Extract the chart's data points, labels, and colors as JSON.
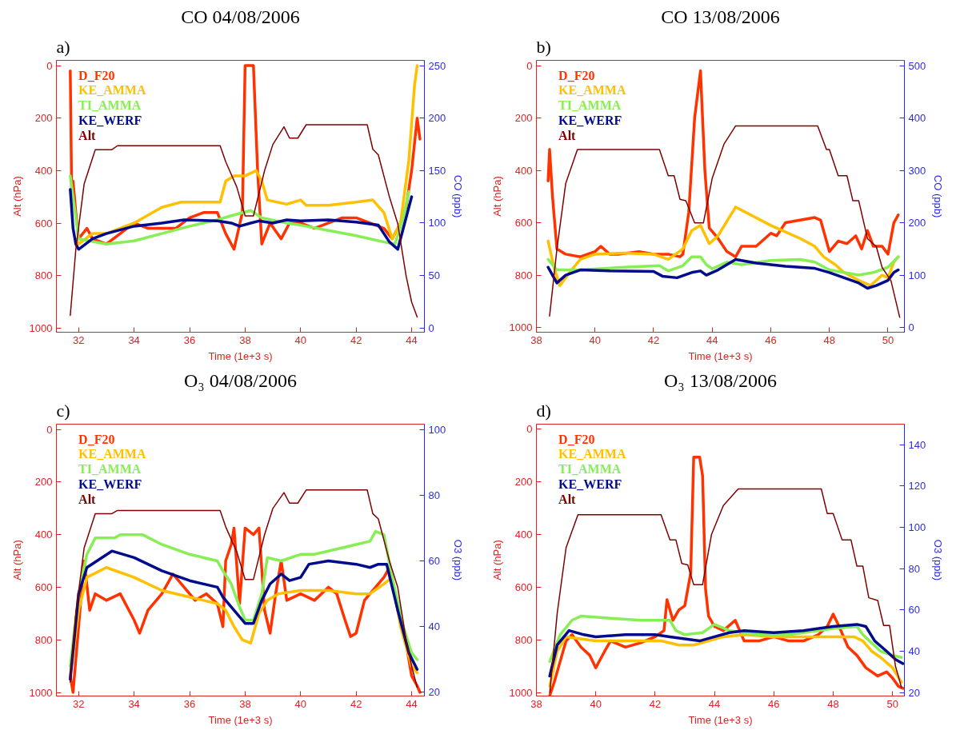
{
  "chart_data": [
    {
      "type": "line",
      "title": "CO 04/08/2006",
      "annotations": [
        "a)"
      ],
      "xlabel": "Time (1e+3 s)",
      "ylabel": "Alt (hPa)",
      "y2label": "CO (ppb)",
      "xlim": [
        31.2,
        44.46
      ],
      "xticks": [
        32,
        34,
        36,
        38,
        40,
        42,
        44
      ],
      "ylim": [
        1015,
        -20
      ],
      "yticks": [
        0,
        200,
        400,
        600,
        800,
        1000
      ],
      "y2lim": [
        -4,
        255
      ],
      "y2ticks": [
        0,
        50,
        100,
        150,
        200,
        250
      ],
      "legend": "top left",
      "grid": false,
      "series": [
        {
          "name": "D_F20",
          "color": "#ff3300",
          "axis": "y2",
          "x": [
            31.7,
            31.75,
            31.8,
            31.9,
            32.0,
            32.3,
            32.5,
            33.0,
            33.5,
            34.0,
            34.5,
            35.0,
            35.5,
            36.0,
            36.5,
            37.0,
            37.3,
            37.6,
            37.9,
            38.0,
            38.3,
            38.45,
            38.6,
            38.9,
            39.3,
            39.6,
            40.0,
            40.5,
            41.0,
            41.5,
            42.0,
            42.5,
            43.0,
            43.3,
            43.6,
            43.8,
            44.0,
            44.2,
            44.3
          ],
          "values": [
            245,
            130,
            140,
            110,
            85,
            95,
            85,
            80,
            90,
            100,
            95,
            95,
            95,
            105,
            110,
            110,
            90,
            75,
            110,
            250,
            250,
            150,
            80,
            100,
            85,
            100,
            100,
            95,
            100,
            105,
            105,
            100,
            95,
            85,
            100,
            115,
            150,
            200,
            180
          ]
        },
        {
          "name": "KE_AMMA",
          "color": "#ffc000",
          "axis": "y2",
          "x": [
            31.9,
            32.0,
            32.5,
            33.0,
            34.0,
            35.0,
            35.7,
            37.1,
            37.3,
            37.6,
            38.0,
            38.4,
            38.6,
            38.8,
            39.5,
            40.0,
            40.2,
            41.0,
            42.0,
            42.6,
            43.0,
            43.3,
            43.6,
            43.9,
            44.1,
            44.2
          ],
          "values": [
            85,
            80,
            90,
            90,
            100,
            115,
            120,
            120,
            140,
            145,
            145,
            150,
            140,
            122,
            118,
            122,
            117,
            117,
            120,
            122,
            110,
            85,
            100,
            160,
            230,
            250
          ]
        },
        {
          "name": "TI_AMMA",
          "color": "#88ee55",
          "axis": "y2",
          "x": [
            31.7,
            31.8,
            32.0,
            33.0,
            34.0,
            35.0,
            36.0,
            37.0,
            37.5,
            38.2,
            38.6,
            39.5,
            40.0,
            41.0,
            42.0,
            43.0,
            43.4,
            43.7,
            43.9
          ],
          "values": [
            145,
            125,
            85,
            80,
            83,
            90,
            97,
            103,
            107,
            112,
            105,
            100,
            98,
            93,
            88,
            82,
            80,
            105,
            130
          ]
        },
        {
          "name": "KE_WERF",
          "color": "#000c8c",
          "axis": "y2",
          "x": [
            31.7,
            31.8,
            31.9,
            32.0,
            32.5,
            33.0,
            34.0,
            35.0,
            35.8,
            37.0,
            37.5,
            37.8,
            38.2,
            38.5,
            39.0,
            39.5,
            40.0,
            41.0,
            42.0,
            42.8,
            43.2,
            43.5,
            43.7,
            43.9,
            44.0
          ],
          "values": [
            132,
            95,
            80,
            75,
            85,
            90,
            97,
            100,
            103,
            102,
            100,
            97,
            100,
            102,
            100,
            103,
            102,
            103,
            101,
            98,
            82,
            75,
            95,
            115,
            125
          ]
        },
        {
          "name": "Alt",
          "color": "#800000",
          "x": [
            31.7,
            31.9,
            32.2,
            32.6,
            33.2,
            33.4,
            37.1,
            37.3,
            37.7,
            38.0,
            38.3,
            38.7,
            39.0,
            39.4,
            39.6,
            39.9,
            40.2,
            42.4,
            42.6,
            42.8,
            43.2,
            43.5,
            43.8,
            44.0,
            44.2
          ],
          "values": [
            951,
            700,
            450,
            320,
            320,
            305,
            305,
            366,
            462,
            572,
            572,
            400,
            300,
            233,
            276,
            276,
            225,
            225,
            318,
            340,
            500,
            602,
            800,
            900,
            957
          ]
        }
      ]
    },
    {
      "type": "line",
      "title": "CO 13/08/2006",
      "annotations": [
        "b)"
      ],
      "xlabel": "Time (1e+3 s)",
      "ylabel": "Alt (hPa)",
      "y2label": "CO (ppb)",
      "xlim": [
        38.0,
        50.56
      ],
      "xticks": [
        38,
        40,
        42,
        44,
        46,
        48,
        50
      ],
      "ylim": [
        1017,
        -20
      ],
      "yticks": [
        0,
        200,
        400,
        600,
        800,
        1000
      ],
      "y2lim": [
        -9,
        510
      ],
      "y2ticks": [
        0,
        100,
        200,
        300,
        400,
        500
      ],
      "legend": "top left",
      "grid": false,
      "series": [
        {
          "name": "D_F20",
          "color": "#ff3300",
          "axis": "y2",
          "x": [
            38.4,
            38.45,
            38.55,
            38.7,
            39.0,
            39.5,
            40.0,
            40.2,
            40.5,
            40.8,
            41.5,
            42.0,
            42.5,
            42.9,
            43.0,
            43.2,
            43.4,
            43.6,
            43.75,
            43.9,
            44.2,
            44.5,
            44.8,
            45.0,
            45.5,
            46.0,
            46.2,
            46.5,
            47.0,
            47.5,
            47.7,
            48.0,
            48.3,
            48.6,
            48.9,
            49.1,
            49.3,
            49.5,
            49.8,
            50.0,
            50.2,
            50.35
          ],
          "values": [
            280,
            340,
            250,
            150,
            140,
            135,
            145,
            155,
            140,
            140,
            145,
            140,
            140,
            135,
            140,
            220,
            400,
            490,
            300,
            190,
            170,
            145,
            135,
            155,
            155,
            180,
            175,
            200,
            205,
            210,
            205,
            145,
            165,
            160,
            175,
            150,
            185,
            155,
            155,
            140,
            200,
            215
          ]
        },
        {
          "name": "KE_AMMA",
          "color": "#ffc000",
          "axis": "y2",
          "x": [
            38.4,
            38.6,
            38.8,
            39.2,
            39.5,
            40.0,
            41.0,
            42.0,
            42.5,
            43.0,
            43.3,
            43.6,
            43.9,
            44.2,
            44.8,
            46.0,
            47.0,
            47.5,
            47.8,
            48.2,
            48.5,
            49.0,
            49.4,
            49.8,
            50.0,
            50.2,
            50.35
          ],
          "values": [
            165,
            115,
            80,
            110,
            130,
            140,
            142,
            140,
            130,
            150,
            185,
            195,
            160,
            175,
            230,
            195,
            170,
            155,
            135,
            120,
            105,
            90,
            80,
            100,
            95,
            125,
            135
          ]
        },
        {
          "name": "TI_AMMA",
          "color": "#88ee55",
          "axis": "y2",
          "x": [
            38.4,
            38.7,
            39.5,
            41.0,
            42.2,
            42.5,
            43.0,
            43.3,
            43.6,
            43.8,
            44.0,
            44.5,
            45.0,
            46.0,
            47.0,
            47.5,
            48.0,
            49.0,
            49.5,
            50.0,
            50.35
          ],
          "values": [
            130,
            110,
            110,
            115,
            118,
            108,
            118,
            135,
            135,
            120,
            112,
            125,
            120,
            128,
            130,
            125,
            110,
            100,
            105,
            115,
            135
          ]
        },
        {
          "name": "KE_WERF",
          "color": "#000c8c",
          "axis": "y2",
          "x": [
            38.4,
            38.55,
            38.7,
            39.0,
            39.5,
            40.5,
            42.0,
            42.3,
            42.8,
            43.3,
            43.6,
            43.8,
            44.2,
            44.8,
            45.5,
            46.5,
            47.5,
            48.0,
            48.5,
            49.0,
            49.3,
            49.6,
            50.0,
            50.2,
            50.35
          ],
          "values": [
            115,
            100,
            85,
            100,
            110,
            108,
            107,
            98,
            95,
            105,
            108,
            100,
            110,
            130,
            123,
            117,
            113,
            105,
            95,
            85,
            75,
            80,
            90,
            105,
            110
          ]
        },
        {
          "name": "Alt",
          "color": "#800000",
          "x": [
            38.45,
            38.7,
            39.0,
            39.4,
            42.2,
            42.5,
            42.7,
            42.9,
            43.1,
            43.4,
            43.7,
            44.0,
            44.4,
            44.8,
            47.6,
            47.9,
            48.0,
            48.3,
            48.6,
            48.8,
            49.0,
            49.3,
            49.6,
            49.8,
            50.1,
            50.4
          ],
          "values": [
            955,
            700,
            450,
            320,
            320,
            420,
            420,
            510,
            515,
            600,
            600,
            430,
            300,
            230,
            230,
            320,
            320,
            420,
            420,
            515,
            515,
            660,
            690,
            770,
            820,
            960
          ]
        }
      ]
    },
    {
      "type": "line",
      "title": "O₃ 04/08/2006",
      "annotations": [
        "c)"
      ],
      "xlabel": "Time (1e+3 s)",
      "ylabel": "Alt (hPa)",
      "y2label": "O3 (ppb)",
      "xlim": [
        31.2,
        44.46
      ],
      "xticks": [
        32,
        34,
        36,
        38,
        40,
        42,
        44
      ],
      "ylim": [
        1013,
        -20
      ],
      "yticks": [
        0,
        200,
        400,
        600,
        800,
        1000
      ],
      "y2lim": [
        18.9,
        101.6
      ],
      "y2ticks": [
        20,
        40,
        60,
        80,
        100
      ],
      "legend": "top left",
      "grid": false,
      "series": [
        {
          "name": "D_F20",
          "color": "#ff3300",
          "axis": "y2",
          "x": [
            31.7,
            31.8,
            32.0,
            32.2,
            32.4,
            32.6,
            33.0,
            33.5,
            34.0,
            34.2,
            34.5,
            35.0,
            35.4,
            35.8,
            36.2,
            36.6,
            37.0,
            37.2,
            37.3,
            37.5,
            37.6,
            37.8,
            38.0,
            38.3,
            38.5,
            38.7,
            38.9,
            39.1,
            39.3,
            39.5,
            40.0,
            40.5,
            41.0,
            41.3,
            41.6,
            41.8,
            42.0,
            42.3,
            42.7,
            43.0,
            43.2,
            43.5,
            43.8,
            44.0,
            44.2,
            44.3
          ],
          "values": [
            25,
            20,
            40,
            60,
            45,
            50,
            48,
            50,
            42,
            38,
            45,
            50,
            56,
            52,
            48,
            50,
            47,
            40,
            60,
            65,
            70,
            47,
            70,
            68,
            70,
            45,
            38,
            50,
            60,
            48,
            50,
            48,
            52,
            50,
            42,
            37,
            38,
            48,
            52,
            55,
            58,
            45,
            35,
            25,
            22,
            20
          ]
        },
        {
          "name": "KE_AMMA",
          "color": "#ffc000",
          "axis": "y2",
          "x": [
            31.7,
            32.0,
            32.3,
            33.0,
            34.0,
            35.0,
            36.0,
            37.0,
            37.3,
            37.6,
            37.9,
            38.2,
            38.5,
            38.8,
            39.2,
            40.0,
            41.0,
            42.0,
            42.5,
            43.0,
            43.3,
            43.6,
            44.0,
            44.2
          ],
          "values": [
            25,
            45,
            55,
            58,
            55,
            51,
            49,
            47,
            45,
            40,
            36,
            35,
            44,
            48,
            50,
            51,
            51,
            50,
            50,
            53,
            55,
            40,
            28,
            26
          ]
        },
        {
          "name": "TI_AMMA",
          "color": "#88ee55",
          "axis": "y2",
          "x": [
            31.7,
            32.0,
            32.3,
            32.6,
            33.3,
            33.5,
            34.3,
            35.0,
            36.0,
            37.0,
            37.2,
            37.5,
            37.8,
            38.0,
            38.3,
            38.6,
            38.8,
            39.3,
            40.0,
            40.5,
            41.0,
            42.0,
            42.5,
            42.7,
            43.0,
            43.3,
            43.7,
            44.0,
            44.2
          ],
          "values": [
            28,
            50,
            62,
            67,
            67,
            68,
            68,
            65,
            62,
            60,
            57,
            53,
            46,
            42,
            42,
            50,
            61,
            60,
            62,
            62,
            63,
            65,
            66,
            69,
            68,
            55,
            40,
            32,
            30
          ]
        },
        {
          "name": "KE_WERF",
          "color": "#000c8c",
          "axis": "y2",
          "x": [
            31.7,
            32.0,
            32.3,
            33.2,
            34.0,
            35.0,
            36.0,
            37.0,
            37.2,
            37.5,
            37.8,
            38.0,
            38.3,
            38.6,
            38.9,
            39.3,
            39.6,
            40.0,
            40.3,
            41.0,
            42.0,
            42.5,
            42.8,
            43.1,
            43.5,
            43.9,
            44.2
          ],
          "values": [
            24,
            50,
            58,
            63,
            61,
            57,
            54,
            52,
            49,
            46,
            43,
            41,
            41,
            48,
            53,
            56,
            54,
            55,
            59,
            60,
            59,
            58,
            59,
            59,
            45,
            32,
            27
          ]
        },
        {
          "name": "Alt",
          "color": "#800000",
          "x": [
            31.7,
            31.9,
            32.2,
            32.6,
            33.2,
            33.4,
            37.1,
            37.3,
            37.7,
            38.0,
            38.3,
            38.7,
            39.0,
            39.4,
            39.6,
            39.9,
            40.2,
            42.4,
            42.6,
            42.8,
            43.2,
            43.5,
            43.8,
            44.0,
            44.2
          ],
          "values": [
            960,
            700,
            450,
            320,
            320,
            308,
            308,
            370,
            465,
            570,
            570,
            400,
            300,
            240,
            280,
            280,
            230,
            230,
            320,
            340,
            500,
            600,
            800,
            900,
            980
          ]
        }
      ]
    },
    {
      "type": "line",
      "title": "O₃ 13/08/2006",
      "annotations": [
        "d)"
      ],
      "xlabel": "Time (1e+3 s)",
      "ylabel": "Alt (hPa)",
      "y2label": "O3 (ppb)",
      "xlim": [
        38.0,
        50.4
      ],
      "xticks": [
        38,
        40,
        42,
        44,
        46,
        48,
        50
      ],
      "ylim": [
        1013,
        -19
      ],
      "yticks": [
        0,
        200,
        400,
        600,
        800,
        1000
      ],
      "y2lim": [
        18.3,
        150
      ],
      "y2ticks": [
        20,
        40,
        60,
        80,
        100,
        120,
        140
      ],
      "legend": "top left",
      "grid": false,
      "series": [
        {
          "name": "D_F20",
          "color": "#ff3300",
          "axis": "y2",
          "x": [
            38.45,
            38.6,
            38.8,
            39.0,
            39.2,
            39.5,
            39.8,
            40.0,
            40.3,
            40.5,
            41.0,
            41.5,
            42.0,
            42.3,
            42.4,
            42.6,
            42.8,
            43.0,
            43.1,
            43.2,
            43.3,
            43.5,
            43.6,
            43.7,
            43.8,
            44.0,
            44.3,
            44.7,
            45.0,
            45.5,
            46.0,
            46.5,
            47.0,
            47.5,
            47.8,
            48.0,
            48.2,
            48.5,
            48.8,
            49.1,
            49.5,
            49.8,
            50.0,
            50.2,
            50.35
          ],
          "values": [
            18.5,
            25,
            35,
            45,
            48,
            42,
            38,
            32,
            40,
            45,
            42,
            44,
            47,
            50,
            65,
            55,
            60,
            62,
            70,
            78,
            134,
            134,
            125,
            70,
            57,
            52,
            50,
            55,
            45,
            45,
            47,
            45,
            45,
            48,
            52,
            58,
            52,
            42,
            38,
            32,
            28,
            30,
            27,
            23,
            22
          ]
        },
        {
          "name": "KE_AMMA",
          "color": "#ffc000",
          "axis": "y2",
          "x": [
            38.45,
            38.7,
            39.0,
            39.5,
            40.0,
            40.5,
            41.5,
            42.2,
            42.8,
            43.3,
            43.8,
            44.3,
            45.0,
            46.0,
            47.0,
            48.0,
            48.7,
            49.0,
            49.3,
            49.6,
            50.0,
            50.3
          ],
          "values": [
            23,
            40,
            47,
            46,
            45,
            45,
            45,
            45,
            43,
            43,
            45,
            47,
            48,
            47,
            47,
            47,
            47,
            45,
            40,
            37,
            32,
            25
          ]
        },
        {
          "name": "TI_AMMA",
          "color": "#88ee55",
          "axis": "y2",
          "x": [
            38.45,
            38.8,
            39.2,
            39.5,
            40.5,
            41.5,
            42.5,
            42.7,
            43.0,
            43.6,
            44.0,
            44.5,
            45.5,
            46.5,
            47.0,
            48.0,
            48.8,
            49.0,
            49.3,
            49.6,
            50.0,
            50.3
          ],
          "values": [
            35,
            48,
            55,
            57,
            56,
            55,
            55,
            50,
            48,
            49,
            53,
            50,
            48,
            48,
            49,
            51,
            52,
            48,
            44,
            40,
            38,
            37
          ]
        },
        {
          "name": "KE_WERF",
          "color": "#000c8c",
          "axis": "y2",
          "x": [
            38.45,
            38.7,
            39.1,
            39.6,
            40.0,
            41.0,
            42.0,
            42.5,
            43.0,
            43.5,
            44.0,
            44.5,
            45.0,
            46.0,
            47.0,
            48.0,
            48.8,
            49.1,
            49.4,
            49.8,
            50.1,
            50.35
          ],
          "values": [
            28,
            43,
            50,
            48,
            47,
            48,
            48,
            47,
            46,
            45,
            47,
            49,
            50,
            49,
            50,
            52,
            53,
            52,
            45,
            40,
            36,
            34
          ]
        },
        {
          "name": "Alt",
          "color": "#800000",
          "x": [
            38.45,
            38.7,
            39.0,
            39.4,
            42.2,
            42.5,
            42.7,
            42.9,
            43.1,
            43.3,
            43.6,
            43.9,
            44.3,
            44.8,
            47.6,
            47.8,
            48.0,
            48.3,
            48.6,
            48.8,
            49.0,
            49.2,
            49.5,
            49.7,
            49.9,
            50.1,
            50.3
          ],
          "values": [
            1000,
            700,
            450,
            325,
            325,
            420,
            420,
            510,
            515,
            590,
            590,
            400,
            290,
            227,
            227,
            320,
            320,
            420,
            420,
            520,
            520,
            640,
            650,
            745,
            745,
            900,
            980
          ]
        }
      ]
    }
  ]
}
